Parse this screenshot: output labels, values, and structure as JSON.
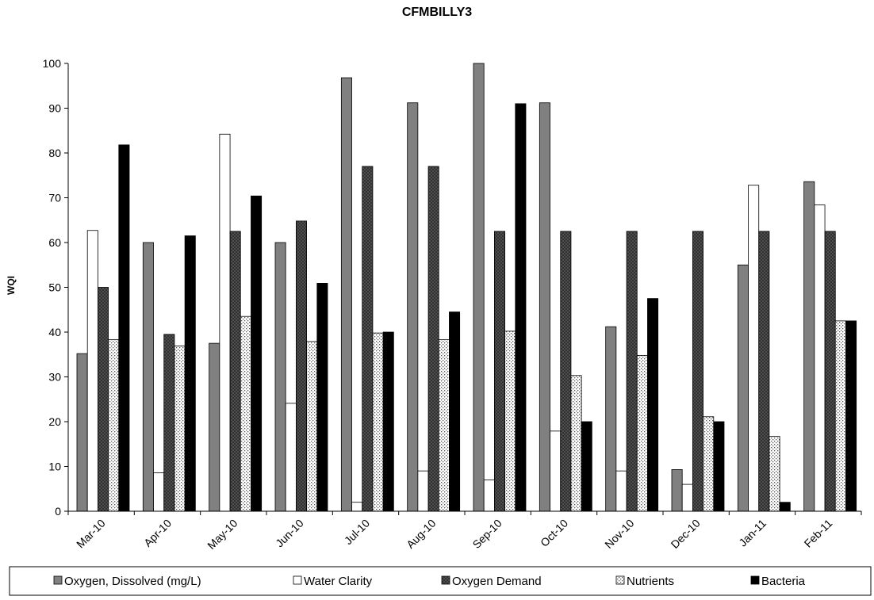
{
  "chart_data": {
    "type": "bar",
    "title": "CFMBILLY3",
    "xlabel": "",
    "ylabel": "WQI",
    "ylim": [
      0,
      100
    ],
    "yticks": [
      0,
      10,
      20,
      30,
      40,
      50,
      60,
      70,
      80,
      90,
      100
    ],
    "grid": false,
    "legend_position": "bottom",
    "categories": [
      "Mar-10",
      "Apr-10",
      "May-10",
      "Jun-10",
      "Jul-10",
      "Aug-10",
      "Sep-10",
      "Oct-10",
      "Nov-10",
      "Dec-10",
      "Jan-11",
      "Feb-11"
    ],
    "series": [
      {
        "name": "Oxygen, Dissolved (mg/L)",
        "pattern": "solid-gray",
        "color": "#808080",
        "values": [
          35.2,
          60,
          37.5,
          60,
          96.8,
          91.2,
          100,
          91.2,
          41.2,
          9.3,
          55,
          73.6
        ]
      },
      {
        "name": "Water Clarity",
        "pattern": "solid-white",
        "color": "#ffffff",
        "values": [
          62.7,
          8.6,
          84.2,
          24.1,
          2,
          9,
          7,
          17.9,
          9,
          6,
          72.8,
          68.4
        ]
      },
      {
        "name": "Oxygen Demand",
        "pattern": "crosshatch",
        "color": "#555555",
        "values": [
          50,
          39.5,
          62.5,
          64.8,
          77,
          77,
          62.5,
          62.5,
          62.5,
          62.5,
          62.5,
          62.5
        ]
      },
      {
        "name": "Nutrients",
        "pattern": "dots",
        "color": "#f0f0f0",
        "values": [
          38.3,
          36.9,
          43.5,
          37.9,
          39.8,
          38.3,
          40.2,
          30.3,
          34.8,
          21.1,
          16.7,
          42.5
        ]
      },
      {
        "name": "Bacteria",
        "pattern": "solid-black",
        "color": "#000000",
        "values": [
          81.8,
          61.5,
          70.4,
          50.9,
          40,
          44.5,
          91,
          20,
          47.5,
          20,
          2,
          42.5
        ]
      }
    ]
  }
}
